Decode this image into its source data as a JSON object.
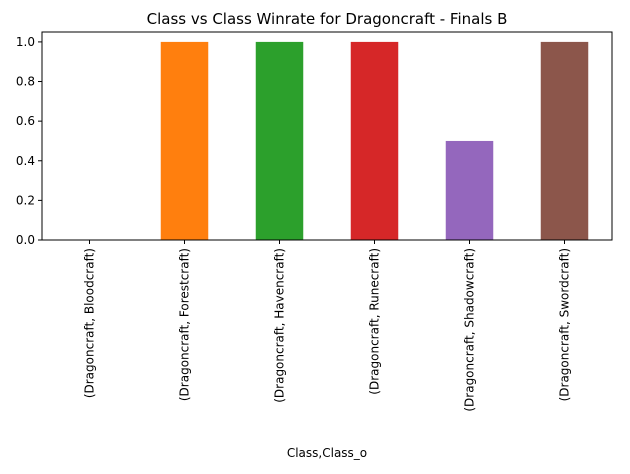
{
  "chart_data": {
    "type": "bar",
    "title": "Class vs Class Winrate for Dragoncraft - Finals B",
    "xlabel": "Class,Class_o",
    "ylabel": "",
    "categories": [
      "(Dragoncraft, Bloodcraft)",
      "(Dragoncraft, Forestcraft)",
      "(Dragoncraft, Havencraft)",
      "(Dragoncraft, Runecraft)",
      "(Dragoncraft, Shadowcraft)",
      "(Dragoncraft, Swordcraft)"
    ],
    "values": [
      0.0,
      1.0,
      1.0,
      1.0,
      0.5,
      1.0
    ],
    "colors": [
      "#1f77b4",
      "#ff7f0e",
      "#2ca02c",
      "#d62728",
      "#9467bd",
      "#8c564b"
    ],
    "ylim": [
      0,
      1.05
    ],
    "yticks": [
      0.0,
      0.2,
      0.4,
      0.6,
      0.8,
      1.0
    ],
    "ytick_labels": [
      "0.0",
      "0.2",
      "0.4",
      "0.6",
      "0.8",
      "1.0"
    ],
    "grid": false,
    "legend": "none"
  }
}
